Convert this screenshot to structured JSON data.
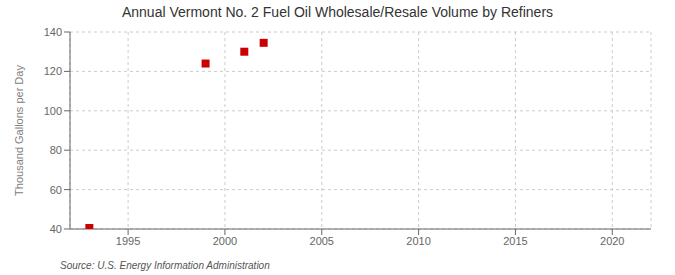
{
  "chart_data": {
    "type": "scatter",
    "title": "Annual Vermont No. 2 Fuel Oil Wholesale/Resale Volume by Refiners",
    "ylabel": "Thousand Gallons per Day",
    "source": "Source: U.S. Energy Information Administration",
    "x": [
      1993,
      1999,
      2001,
      2002
    ],
    "values": [
      40.5,
      124.0,
      130.0,
      134.5
    ],
    "color": "#cc0000",
    "marker": "square",
    "xlim": [
      1992,
      2022
    ],
    "xticks": [
      1995,
      2000,
      2005,
      2010,
      2015,
      2020
    ],
    "ylim": [
      40,
      140
    ],
    "yticks": [
      40,
      60,
      80,
      100,
      120,
      140
    ],
    "grid": true
  }
}
